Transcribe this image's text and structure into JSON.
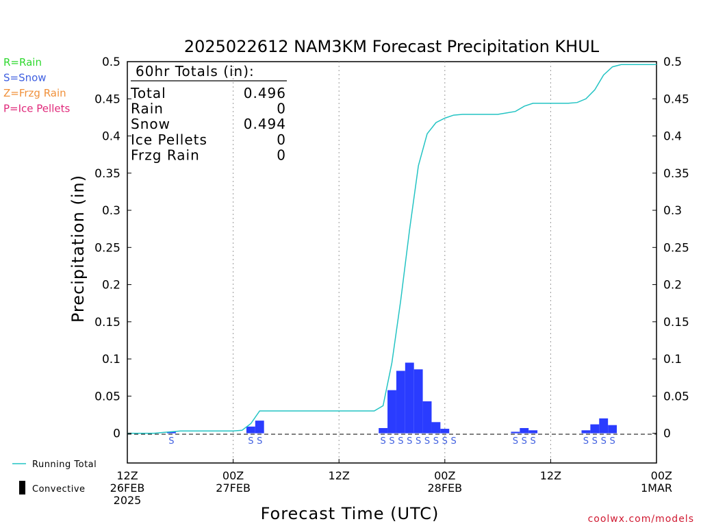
{
  "chart_data": {
    "type": "bar",
    "title": "2025022612 NAM3KM Forecast Precipitation KHUL",
    "xlabel": "Forecast Time (UTC)",
    "ylabel": "Precipitation (in)",
    "ylim": [
      -0.04,
      0.5
    ],
    "xlim_hours": [
      0,
      60
    ],
    "grid": "vertical dotted lines at each 12-hour tick",
    "y_ticks": [
      "0.5",
      "0.45",
      "0.4",
      "0.35",
      "0.3",
      "0.25",
      "0.2",
      "0.15",
      "0.1",
      "0.05",
      "0"
    ],
    "y_tick_values": [
      0.5,
      0.45,
      0.4,
      0.35,
      0.3,
      0.25,
      0.2,
      0.15,
      0.1,
      0.05,
      0
    ],
    "x_ticks": [
      {
        "hour": 0,
        "lines": [
          "12Z",
          "26FEB",
          "2025"
        ]
      },
      {
        "hour": 12,
        "lines": [
          "00Z",
          "27FEB"
        ]
      },
      {
        "hour": 24,
        "lines": [
          "12Z",
          ""
        ]
      },
      {
        "hour": 36,
        "lines": [
          "00Z",
          "28FEB"
        ]
      },
      {
        "hour": 48,
        "lines": [
          "12Z",
          ""
        ]
      },
      {
        "hour": 60,
        "lines": [
          "00Z",
          "1MAR"
        ]
      }
    ],
    "ptype_legend": [
      {
        "label": "R=Rain",
        "color": "#2ed82e"
      },
      {
        "label": "S=Snow",
        "color": "#3f5fe0"
      },
      {
        "label": "Z=Frzg Rain",
        "color": "#f0903a"
      },
      {
        "label": "P=Ice Pellets",
        "color": "#e0287a"
      }
    ],
    "series_legend": [
      {
        "label": "Running Total",
        "color": "#22c3c3"
      },
      {
        "label": "Convective",
        "color": "#000000"
      }
    ],
    "totals_box": {
      "heading": "60hr Totals (in):",
      "rows": [
        {
          "label": "Total",
          "value": "0.496"
        },
        {
          "label": "Rain",
          "value": "0"
        },
        {
          "label": "Snow",
          "value": "0.494"
        },
        {
          "label": "Ice Pellets",
          "value": "0"
        },
        {
          "label": "Frzg Rain",
          "value": "0"
        }
      ]
    },
    "bars": [
      {
        "hour": 5,
        "value": 0.002,
        "ptype": "S"
      },
      {
        "hour": 14,
        "value": 0.009,
        "ptype": "S"
      },
      {
        "hour": 15,
        "value": 0.017,
        "ptype": "S"
      },
      {
        "hour": 29,
        "value": 0.007,
        "ptype": "S"
      },
      {
        "hour": 30,
        "value": 0.058,
        "ptype": "S"
      },
      {
        "hour": 31,
        "value": 0.084,
        "ptype": "S"
      },
      {
        "hour": 32,
        "value": 0.095,
        "ptype": "S"
      },
      {
        "hour": 33,
        "value": 0.086,
        "ptype": "S"
      },
      {
        "hour": 34,
        "value": 0.043,
        "ptype": "S"
      },
      {
        "hour": 35,
        "value": 0.015,
        "ptype": "S"
      },
      {
        "hour": 36,
        "value": 0.006,
        "ptype": "S"
      },
      {
        "hour": 37,
        "value": 0.0,
        "ptype": "S"
      },
      {
        "hour": 44,
        "value": 0.002,
        "ptype": "S"
      },
      {
        "hour": 45,
        "value": 0.007,
        "ptype": "S"
      },
      {
        "hour": 46,
        "value": 0.004,
        "ptype": "S"
      },
      {
        "hour": 52,
        "value": 0.004,
        "ptype": "S"
      },
      {
        "hour": 53,
        "value": 0.012,
        "ptype": "S"
      },
      {
        "hour": 54,
        "value": 0.02,
        "ptype": "S"
      },
      {
        "hour": 55,
        "value": 0.011,
        "ptype": "S"
      }
    ],
    "running_total": {
      "name": "Running Total",
      "x": [
        0,
        3,
        4,
        5,
        6,
        12,
        13,
        14,
        15,
        28,
        29,
        30,
        31,
        32,
        33,
        34,
        35,
        36,
        37,
        38,
        39,
        40,
        41,
        42,
        43,
        44,
        45,
        46,
        47,
        48,
        49,
        50,
        51,
        52,
        53,
        54,
        55,
        56,
        57,
        58,
        59,
        60
      ],
      "y": [
        0,
        0,
        0.001,
        0.002,
        0.003,
        0.003,
        0.004,
        0.013,
        0.03,
        0.03,
        0.037,
        0.095,
        0.179,
        0.274,
        0.36,
        0.403,
        0.418,
        0.424,
        0.428,
        0.429,
        0.429,
        0.429,
        0.429,
        0.429,
        0.431,
        0.433,
        0.44,
        0.444,
        0.444,
        0.444,
        0.444,
        0.444,
        0.445,
        0.45,
        0.462,
        0.482,
        0.493,
        0.496,
        0.496,
        0.496,
        0.496,
        0.496
      ]
    },
    "bar_color": "#2a3cff",
    "running_total_color": "#22c3c3"
  },
  "credit": "coolwx.com/models"
}
